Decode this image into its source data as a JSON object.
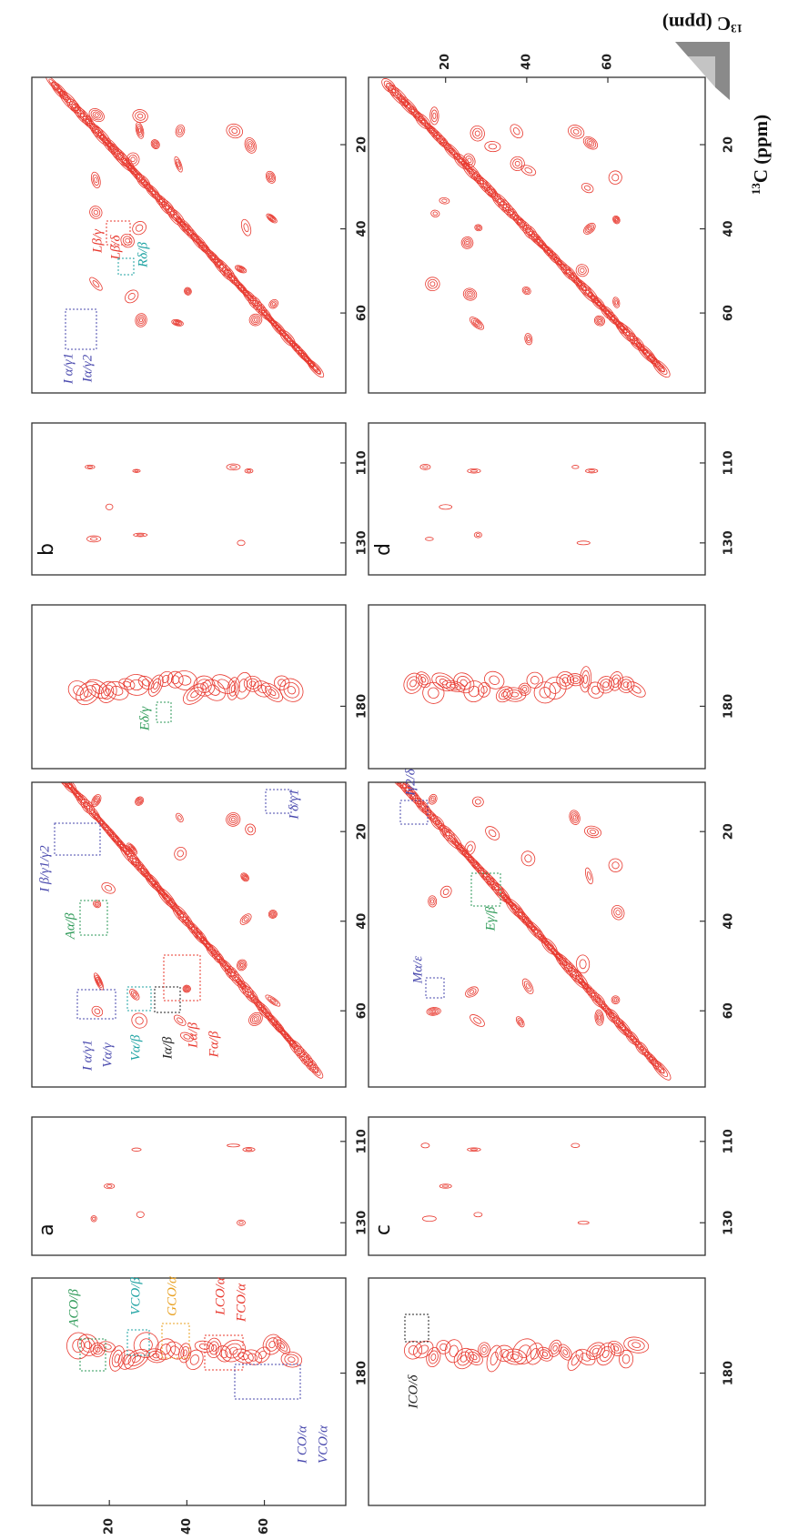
{
  "axis_labels": [
    {
      "sup": "13",
      "text": "C (ppm)"
    },
    {
      "sup": "13",
      "text": "C (ppm)"
    }
  ],
  "chart_data": [
    {
      "type": "contour",
      "label": "a",
      "ylim": [
        0,
        81
      ],
      "yticks": [
        20,
        40,
        60
      ],
      "regions": [
        {
          "xlim": [
            212,
            157
          ],
          "xticks": [
            180
          ],
          "annotations": [
            {
              "text": "ACO/β",
              "color": "#2e9a58"
            },
            {
              "text": "VCO/β",
              "color": "#1fa3a3"
            },
            {
              "text": "GCO/α",
              "color": "#e8a020"
            },
            {
              "text": "LCO/α",
              "color": "#e8382e"
            },
            {
              "text": "FCO/α",
              "color": "#e8382e"
            },
            {
              "text": "I CO/α",
              "color": "#4a4aae"
            },
            {
              "text": "VCO/α",
              "color": "#4a4aae"
            }
          ]
        },
        {
          "xlim": [
            138,
            104
          ],
          "xticks": [
            130,
            110
          ],
          "annotations": []
        },
        {
          "xlim": [
            77,
            9
          ],
          "xticks": [
            60,
            40,
            20
          ],
          "annotations": [
            {
              "text": "I δ/γ1",
              "color": "#4a4aae"
            },
            {
              "text": "I β/γ1/γ2",
              "color": "#4a4aae"
            },
            {
              "text": "Aα/β",
              "color": "#2e9a58"
            },
            {
              "text": "I α/γ1",
              "color": "#4a4aae"
            },
            {
              "text": "Vα/γ",
              "color": "#4a4aae"
            },
            {
              "text": "Vα/β",
              "color": "#1fa3a3"
            },
            {
              "text": "Iα/β",
              "color": "#222222"
            },
            {
              "text": "Lα/β",
              "color": "#e8382e"
            },
            {
              "text": "Fα/β",
              "color": "#e8382e"
            }
          ]
        }
      ]
    },
    {
      "type": "contour",
      "label": "b",
      "ylim": [
        0,
        81
      ],
      "regions": [
        {
          "xlim": [
            196,
            154
          ],
          "xticks": [
            180
          ],
          "annotations": [
            {
              "text": "Eδ/γ",
              "color": "#2e9a58"
            }
          ]
        },
        {
          "xlim": [
            138,
            100
          ],
          "xticks": [
            130,
            110
          ],
          "annotations": []
        },
        {
          "xlim": [
            79,
            4
          ],
          "xticks": [
            60,
            40,
            20
          ],
          "annotations": [
            {
              "text": "I α/γ1",
              "color": "#4a4aae"
            },
            {
              "text": "Iα/γ2",
              "color": "#4a4aae"
            },
            {
              "text": "Lβ/γ",
              "color": "#e8382e"
            },
            {
              "text": "Lβ/δ",
              "color": "#e8382e"
            },
            {
              "text": "Rδ/β",
              "color": "#1fa3a3"
            }
          ]
        }
      ]
    },
    {
      "type": "contour",
      "label": "c",
      "ylim": [
        1,
        84
      ],
      "regions": [
        {
          "xlim": [
            212,
            157
          ],
          "xticks": [
            180
          ],
          "annotations": [
            {
              "text": "ICO/δ",
              "color": "#222222"
            }
          ]
        },
        {
          "xlim": [
            138,
            104
          ],
          "xticks": [
            130,
            110
          ],
          "annotations": []
        },
        {
          "xlim": [
            77,
            9
          ],
          "xticks": [
            60,
            40,
            20
          ],
          "annotations": [
            {
              "text": "Iγ2/δ",
              "color": "#4a4aae"
            },
            {
              "text": "Eγ/β",
              "color": "#2e9a58"
            },
            {
              "text": "Mα/ε",
              "color": "#4a4aae"
            }
          ]
        }
      ]
    },
    {
      "type": "contour",
      "label": "d",
      "ylim": [
        1,
        84
      ],
      "yticks": [
        20,
        40,
        60
      ],
      "regions": [
        {
          "xlim": [
            196,
            154
          ],
          "xticks": [
            180
          ],
          "annotations": []
        },
        {
          "xlim": [
            138,
            100
          ],
          "xticks": [
            130,
            110
          ],
          "annotations": []
        },
        {
          "xlim": [
            79,
            4
          ],
          "xticks": [
            60,
            40,
            20
          ],
          "annotations": []
        }
      ]
    }
  ]
}
